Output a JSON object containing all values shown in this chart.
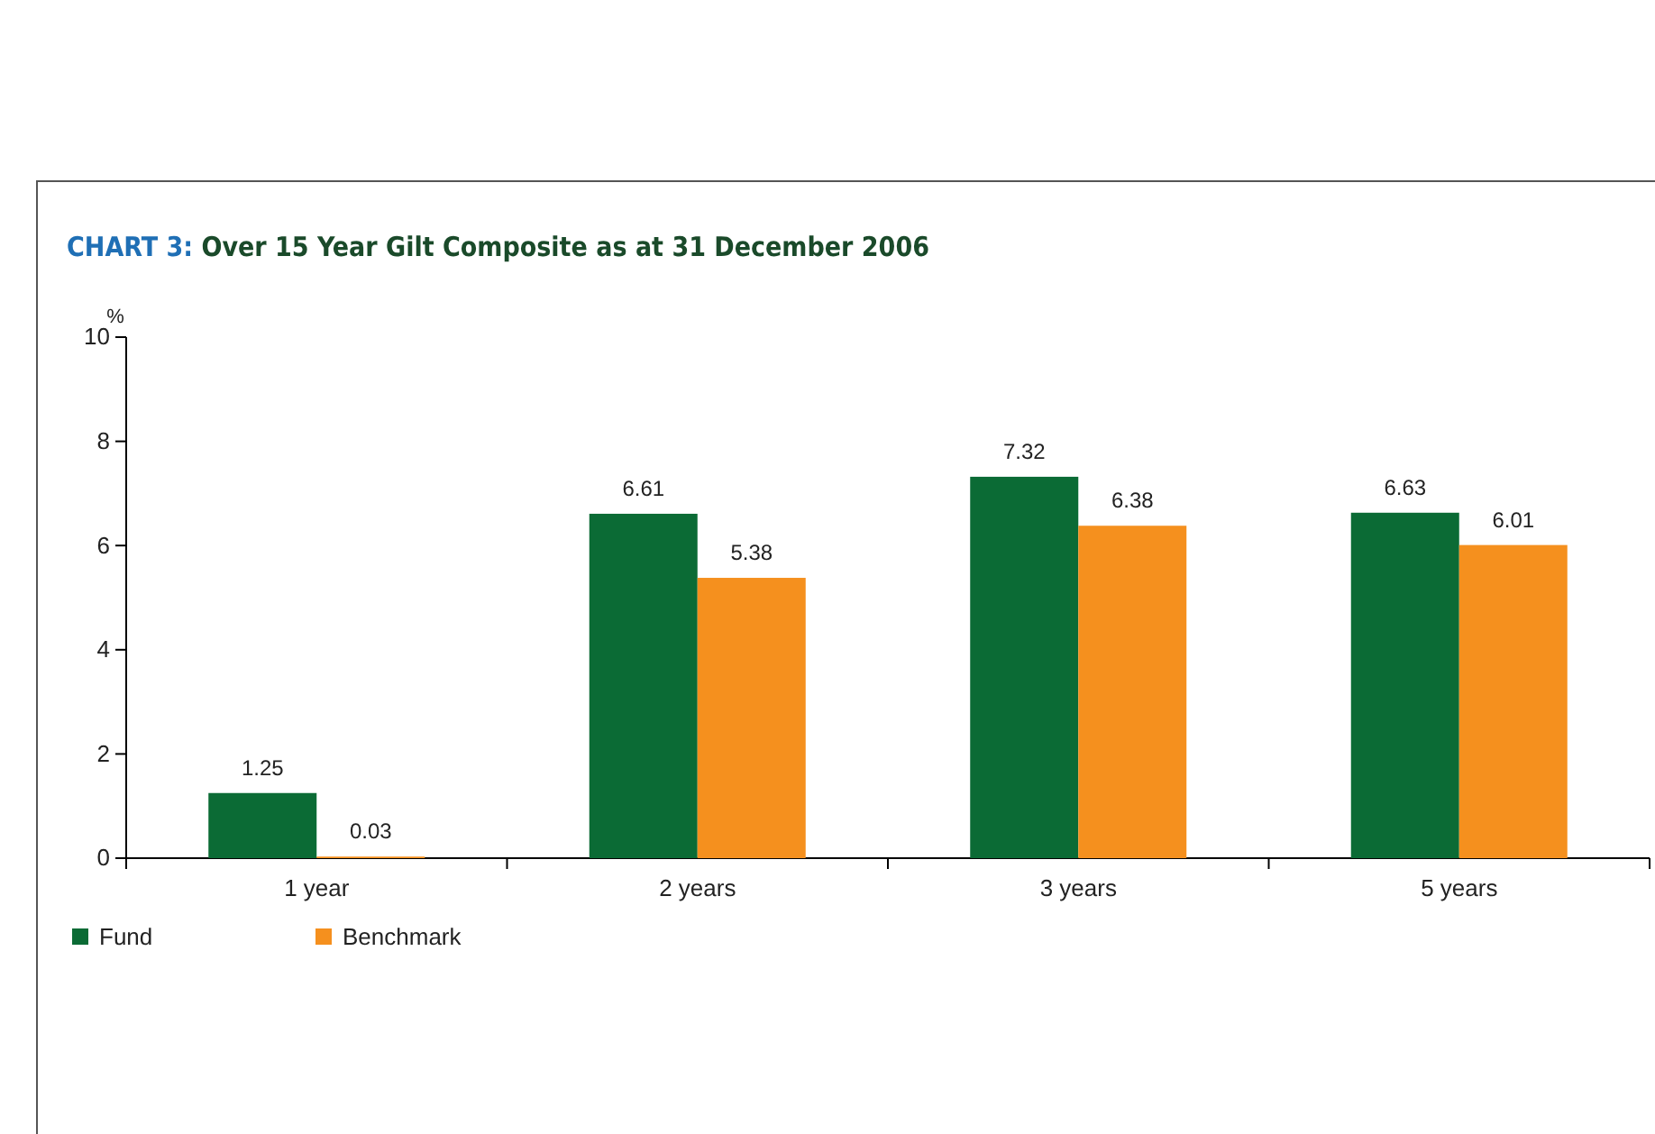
{
  "chart_data": {
    "type": "bar",
    "title": "CHART 3: Over 15 Year Gilt Composite as at 31 December 2006",
    "ylabel": "%",
    "categories": [
      "1 year",
      "2 years",
      "3 years",
      "5 years"
    ],
    "series": [
      {
        "name": "Fund",
        "color": "#0b6b35",
        "values": [
          1.25,
          6.61,
          7.32,
          6.63
        ]
      },
      {
        "name": "Benchmark",
        "color": "#f5901e",
        "values": [
          0.03,
          5.38,
          6.38,
          6.01
        ]
      }
    ],
    "ylim": [
      0,
      10
    ],
    "yticks": [
      0,
      2,
      4,
      6,
      8,
      10
    ],
    "grid": false,
    "legend": "bottom",
    "data_labels": true
  }
}
